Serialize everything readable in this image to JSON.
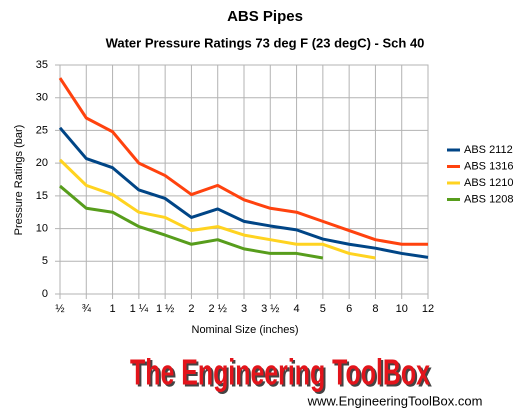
{
  "chart_data": {
    "type": "line",
    "title": "ABS Pipes",
    "subtitle": "Water Pressure Ratings 73 deg F (23 degC)  - Sch 40",
    "x_label": "Nominal Size (inches)",
    "y_label": "Pressure Ratings (bar)",
    "categories": [
      "½",
      "¾",
      "1",
      "1 ¼",
      "1 ½",
      "2",
      "2 ½",
      "3",
      "3 ½",
      "4",
      "5",
      "6",
      "8",
      "10",
      "12"
    ],
    "series": [
      {
        "name": "ABS 2112",
        "color": "#004586",
        "values": [
          25.4,
          20.7,
          19.3,
          15.9,
          14.6,
          11.7,
          13.0,
          11.1,
          10.4,
          9.8,
          8.4,
          7.6,
          7.0,
          6.2,
          5.6
        ]
      },
      {
        "name": "ABS 1316",
        "color": "#ff420e",
        "values": [
          33.0,
          26.9,
          24.8,
          20.0,
          18.1,
          15.2,
          16.6,
          14.4,
          13.1,
          12.5,
          11.1,
          9.7,
          8.3,
          7.6,
          7.6
        ]
      },
      {
        "name": "ABS 1210",
        "color": "#ffd320",
        "values": [
          20.5,
          16.6,
          15.2,
          12.5,
          11.7,
          9.7,
          10.3,
          9.0,
          8.3,
          7.6,
          7.6,
          6.2,
          5.5,
          null,
          null
        ]
      },
      {
        "name": "ABS 1208",
        "color": "#579d1c",
        "values": [
          16.5,
          13.1,
          12.5,
          10.3,
          9.0,
          7.6,
          8.3,
          6.9,
          6.2,
          6.2,
          5.5,
          null,
          null,
          null,
          null
        ]
      }
    ],
    "ylim": [
      0,
      35
    ],
    "yticks": [
      0,
      5,
      10,
      15,
      20,
      25,
      30,
      35
    ],
    "grid": true,
    "legend": "right"
  },
  "footer": {
    "logo": "The Engineering ToolBox",
    "url": "www.EngineeringToolBox.com"
  }
}
